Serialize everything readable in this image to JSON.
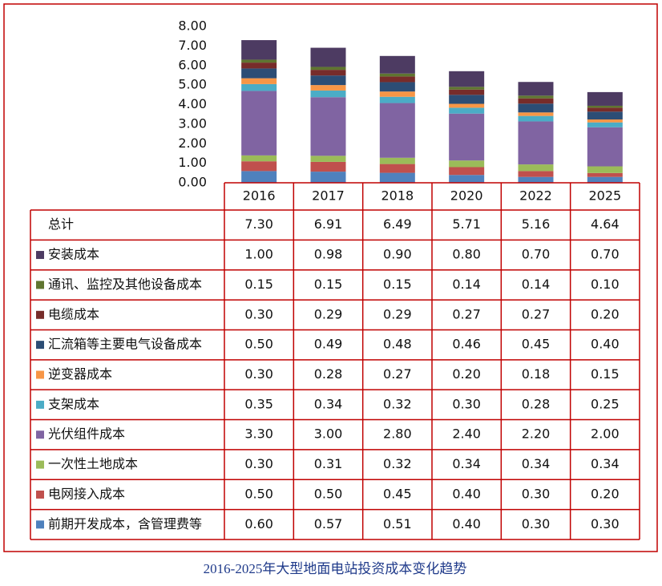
{
  "chart_data": {
    "type": "stacked_bar",
    "title": "2016-2025年大型地面电站投资成本变化趋势",
    "categories": [
      "2016",
      "2017",
      "2018",
      "2020",
      "2022",
      "2025"
    ],
    "ylim": [
      0,
      8
    ],
    "yticks": [
      {
        "value": 0,
        "label": "0.00"
      },
      {
        "value": 1,
        "label": "1.00"
      },
      {
        "value": 2,
        "label": "2.00"
      },
      {
        "value": 3,
        "label": "3.00"
      },
      {
        "value": 4,
        "label": "4.00"
      },
      {
        "value": 5,
        "label": "5.00"
      },
      {
        "value": 6,
        "label": "6.00"
      },
      {
        "value": 7,
        "label": "7.00"
      },
      {
        "value": 8,
        "label": "8.00"
      }
    ],
    "total": {
      "name": "总计",
      "values": [
        7.3,
        6.91,
        6.49,
        5.71,
        5.16,
        4.64
      ],
      "value_labels": [
        "7.30",
        "6.91",
        "6.49",
        "5.71",
        "5.16",
        "4.64"
      ]
    },
    "series": [
      {
        "name": "前期开发成本，含管理费等",
        "color": "#4f81bd",
        "values": [
          0.6,
          0.57,
          0.51,
          0.4,
          0.3,
          0.3
        ],
        "value_labels": [
          "0.60",
          "0.57",
          "0.51",
          "0.40",
          "0.30",
          "0.30"
        ]
      },
      {
        "name": "电网接入成本",
        "color": "#c0504d",
        "values": [
          0.5,
          0.5,
          0.45,
          0.4,
          0.3,
          0.2
        ],
        "value_labels": [
          "0.50",
          "0.50",
          "0.45",
          "0.40",
          "0.30",
          "0.20"
        ]
      },
      {
        "name": "一次性土地成本",
        "color": "#9bbb59",
        "values": [
          0.3,
          0.31,
          0.32,
          0.34,
          0.34,
          0.34
        ],
        "value_labels": [
          "0.30",
          "0.31",
          "0.32",
          "0.34",
          "0.34",
          "0.34"
        ]
      },
      {
        "name": "光伏组件成本",
        "color": "#8064a2",
        "values": [
          3.3,
          3.0,
          2.8,
          2.4,
          2.2,
          2.0
        ],
        "value_labels": [
          "3.30",
          "3.00",
          "2.80",
          "2.40",
          "2.20",
          "2.00"
        ]
      },
      {
        "name": "支架成本",
        "color": "#4bacc6",
        "values": [
          0.35,
          0.34,
          0.32,
          0.3,
          0.28,
          0.25
        ],
        "value_labels": [
          "0.35",
          "0.34",
          "0.32",
          "0.30",
          "0.28",
          "0.25"
        ]
      },
      {
        "name": "逆变器成本",
        "color": "#f79646",
        "values": [
          0.3,
          0.28,
          0.27,
          0.2,
          0.18,
          0.15
        ],
        "value_labels": [
          "0.30",
          "0.28",
          "0.27",
          "0.20",
          "0.18",
          "0.15"
        ]
      },
      {
        "name": "汇流箱等主要电气设备成本",
        "color": "#2c4d75",
        "values": [
          0.5,
          0.49,
          0.48,
          0.46,
          0.45,
          0.4
        ],
        "value_labels": [
          "0.50",
          "0.49",
          "0.48",
          "0.46",
          "0.45",
          "0.40"
        ]
      },
      {
        "name": "电缆成本",
        "color": "#772c2a",
        "values": [
          0.3,
          0.29,
          0.29,
          0.27,
          0.27,
          0.2
        ],
        "value_labels": [
          "0.30",
          "0.29",
          "0.29",
          "0.27",
          "0.27",
          "0.20"
        ]
      },
      {
        "name": "通讯、监控及其他设备成本",
        "color": "#5f7530",
        "values": [
          0.15,
          0.15,
          0.15,
          0.14,
          0.14,
          0.1
        ],
        "value_labels": [
          "0.15",
          "0.15",
          "0.15",
          "0.14",
          "0.14",
          "0.10"
        ]
      },
      {
        "name": "安装成本",
        "color": "#4d3b62",
        "values": [
          1.0,
          0.98,
          0.9,
          0.8,
          0.7,
          0.7
        ],
        "value_labels": [
          "1.00",
          "0.98",
          "0.90",
          "0.80",
          "0.70",
          "0.70"
        ]
      }
    ]
  }
}
